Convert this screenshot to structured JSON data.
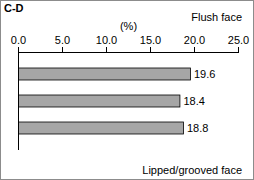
{
  "chart_data": {
    "type": "bar",
    "title": "C-D",
    "orientation": "horizontal",
    "x_label": "(%)",
    "annotations": [
      "Flush face",
      "Lipped/grooved face"
    ],
    "categories": [
      null,
      null,
      null
    ],
    "values": [
      19.6,
      18.4,
      18.8
    ],
    "color": "#a6a6a6",
    "data_labels": true,
    "grid": false,
    "tick_labels": "x",
    "xlim": [
      0,
      25
    ],
    "xticks": [
      {
        "value": 0,
        "label": "0.0"
      },
      {
        "value": 5,
        "label": "5.0"
      },
      {
        "value": 10,
        "label": "10.0"
      },
      {
        "value": 15,
        "label": "15.0"
      },
      {
        "value": 20,
        "label": "20.0"
      },
      {
        "value": 25,
        "label": "25.0"
      }
    ]
  }
}
